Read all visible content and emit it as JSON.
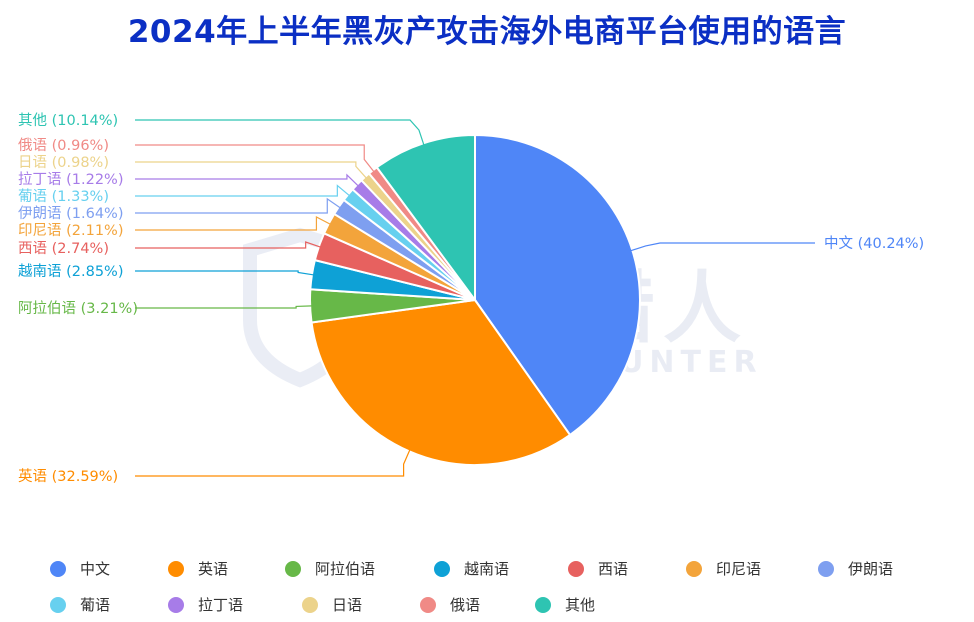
{
  "title": "2024年上半年黑灰产攻击海外电商平台使用的语言",
  "watermark": {
    "cn": "威胁猎人",
    "en": "THREAT HUNTER"
  },
  "chart_data": {
    "type": "pie",
    "title": "2024年上半年黑灰产攻击海外电商平台使用的语言",
    "legend_position": "bottom",
    "slices": [
      {
        "name": "中文",
        "value": 40.24,
        "label": "中文 (40.24%)",
        "color": "#4f86f7"
      },
      {
        "name": "英语",
        "value": 32.59,
        "label": "英语 (32.59%)",
        "color": "#ff8c00"
      },
      {
        "name": "阿拉伯语",
        "value": 3.21,
        "label": "阿拉伯语 (3.21%)",
        "color": "#67b848"
      },
      {
        "name": "越南语",
        "value": 2.85,
        "label": "越南语 (2.85%)",
        "color": "#0ea1d6"
      },
      {
        "name": "西语",
        "value": 2.74,
        "label": "西语 (2.74%)",
        "color": "#e7615f"
      },
      {
        "name": "印尼语",
        "value": 2.11,
        "label": "印尼语 (2.11%)",
        "color": "#f3a43b"
      },
      {
        "name": "伊朗语",
        "value": 1.64,
        "label": "伊朗语 (1.64%)",
        "color": "#7e9ff0"
      },
      {
        "name": "葡语",
        "value": 1.33,
        "label": "葡语 (1.33%)",
        "color": "#67d0ef"
      },
      {
        "name": "拉丁语",
        "value": 1.22,
        "label": "拉丁语 (1.22%)",
        "color": "#a77ce8"
      },
      {
        "name": "日语",
        "value": 0.98,
        "label": "日语 (0.98%)",
        "color": "#ecd38b"
      },
      {
        "name": "俄语",
        "value": 0.96,
        "label": "俄语 (0.96%)",
        "color": "#f08a86"
      },
      {
        "name": "其他",
        "value": 10.14,
        "label": "其他 (10.14%)",
        "color": "#2ec4b2"
      }
    ]
  }
}
